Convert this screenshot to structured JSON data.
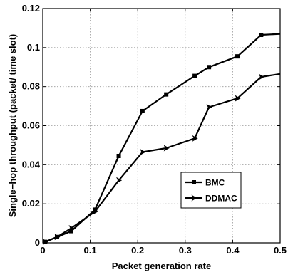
{
  "chart_data": {
    "type": "line",
    "title": "",
    "xlabel": "Packet generation rate",
    "ylabel": "Single−hop throughput (packet/ time slot)",
    "xlim": [
      0,
      0.5
    ],
    "ylim": [
      0,
      0.12
    ],
    "xticks": [
      0,
      0.1,
      0.2,
      0.3,
      0.4,
      0.5
    ],
    "xtick_labels": [
      "0",
      "0.1",
      "0.2",
      "0.3",
      "0.4",
      "0.5"
    ],
    "yticks": [
      0,
      0.02,
      0.04,
      0.06,
      0.08,
      0.1,
      0.12
    ],
    "ytick_labels": [
      "0",
      "0.02",
      "0.04",
      "0.06",
      "0.08",
      "0.1",
      "0.12"
    ],
    "grid": true,
    "legend_position": "lower-right",
    "series": [
      {
        "name": "BMC",
        "marker": "square",
        "color": "#000000",
        "x": [
          0.005,
          0.03,
          0.06,
          0.11,
          0.16,
          0.21,
          0.26,
          0.32,
          0.35,
          0.41,
          0.46,
          0.5
        ],
        "y": [
          0.0005,
          0.003,
          0.006,
          0.017,
          0.0445,
          0.0675,
          0.076,
          0.0855,
          0.09,
          0.0955,
          0.1065,
          0.107
        ]
      },
      {
        "name": "DDMAC",
        "marker": "triangle-right",
        "color": "#000000",
        "x": [
          0.005,
          0.03,
          0.06,
          0.11,
          0.16,
          0.21,
          0.26,
          0.32,
          0.35,
          0.41,
          0.46,
          0.5
        ],
        "y": [
          0.0005,
          0.003,
          0.0075,
          0.016,
          0.032,
          0.0465,
          0.0485,
          0.0535,
          0.0695,
          0.074,
          0.085,
          0.0865
        ]
      }
    ]
  }
}
